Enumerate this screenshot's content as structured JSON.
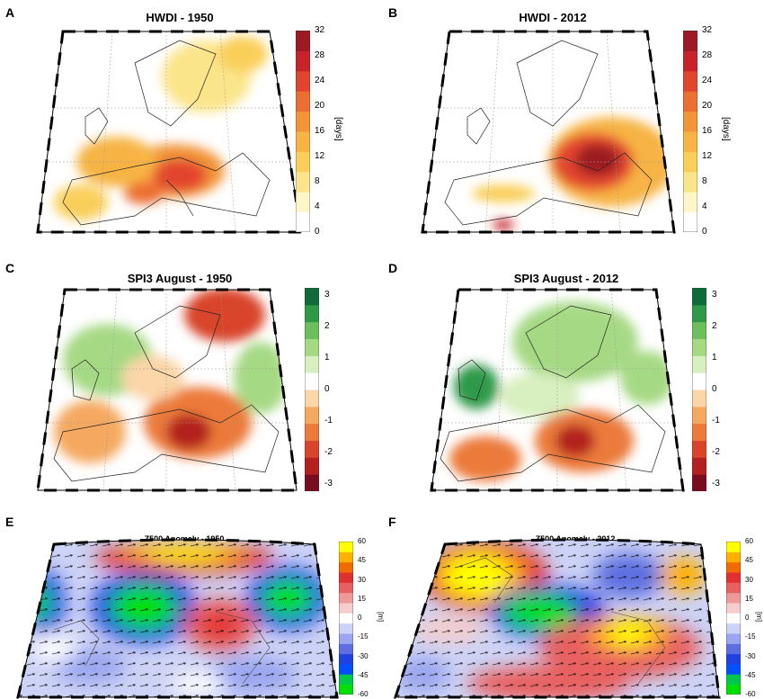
{
  "panels": [
    {
      "letter": "A",
      "title": "HWDI - 1950"
    },
    {
      "letter": "B",
      "title": "HWDI - 2012"
    },
    {
      "letter": "C",
      "title": "SPI3 August - 1950"
    },
    {
      "letter": "D",
      "title": "SPI3 August - 2012"
    },
    {
      "letter": "E",
      "title": "Z500 Anomaly - 1950"
    },
    {
      "letter": "F",
      "title": "Z500 Anomaly - 2012"
    }
  ],
  "colorbars": {
    "hwdi": {
      "unit": "[days]",
      "ticks": [
        "32",
        "28",
        "24",
        "20",
        "16",
        "12",
        "8",
        "4",
        "0"
      ],
      "colors": [
        "#ffffff",
        "#fdf6c8",
        "#fbe58a",
        "#f9cf5a",
        "#f7b445",
        "#f29438",
        "#ec6e32",
        "#e2452d",
        "#c8232a",
        "#9b1a24"
      ]
    },
    "spi": {
      "unit": "",
      "ticks": [
        "3",
        "2",
        "1",
        "0",
        "-1",
        "-2",
        "-3"
      ],
      "colors": [
        "#7a0c1f",
        "#b3201f",
        "#d9452a",
        "#ec7a3b",
        "#f5a960",
        "#fad6a8",
        "#ffffff",
        "#d8efbf",
        "#a6d984",
        "#6cbf5c",
        "#2e9a48",
        "#0f6b3a"
      ]
    },
    "z500": {
      "unit": "[m]",
      "ticks": [
        "60",
        "45",
        "30",
        "15",
        "0",
        "-15",
        "-30",
        "-45",
        "-60"
      ],
      "colors": [
        "#00e000",
        "#00c84a",
        "#0050ff",
        "#2040e0",
        "#5d6fe0",
        "#9aa6ef",
        "#cdd3f6",
        "#ffffff",
        "#f6cccc",
        "#ef9a9a",
        "#e86060",
        "#e23030",
        "#f06a00",
        "#ffb000",
        "#ffff00"
      ]
    }
  },
  "chart_data": [
    {
      "type": "heatmap",
      "title": "HWDI - 1950",
      "colorbar_label": "[days]",
      "colorbar_range": [
        0,
        32
      ],
      "colorbar_ticks": [
        0,
        4,
        8,
        12,
        16,
        20,
        24,
        28,
        32
      ],
      "grid": true
    },
    {
      "type": "heatmap",
      "title": "HWDI - 2012",
      "colorbar_label": "[days]",
      "colorbar_range": [
        0,
        32
      ],
      "colorbar_ticks": [
        0,
        4,
        8,
        12,
        16,
        20,
        24,
        28,
        32
      ],
      "grid": true
    },
    {
      "type": "heatmap",
      "title": "SPI3 August - 1950",
      "colorbar_range": [
        -3,
        3
      ],
      "colorbar_ticks": [
        -3,
        -2,
        -1,
        0,
        1,
        2,
        3
      ],
      "grid": true
    },
    {
      "type": "heatmap",
      "title": "SPI3 August - 2012",
      "colorbar_range": [
        -3,
        3
      ],
      "colorbar_ticks": [
        -3,
        -2,
        -1,
        0,
        1,
        2,
        3
      ],
      "grid": true
    },
    {
      "type": "heatmap",
      "title": "Z500 Anomaly - 1950",
      "colorbar_label": "[m]",
      "colorbar_range": [
        -60,
        60
      ],
      "colorbar_ticks": [
        -60,
        -45,
        -30,
        -15,
        0,
        15,
        30,
        45,
        60
      ],
      "grid": true
    },
    {
      "type": "heatmap",
      "title": "Z500 Anomaly - 2012",
      "colorbar_label": "[m]",
      "colorbar_range": [
        -60,
        60
      ],
      "colorbar_ticks": [
        -60,
        -45,
        -30,
        -15,
        0,
        15,
        30,
        45,
        60
      ],
      "grid": true
    }
  ]
}
